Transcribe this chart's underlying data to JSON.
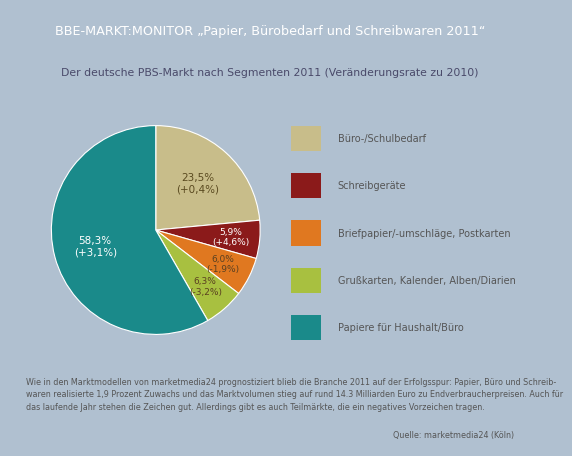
{
  "title_line": "BBE-MARKT:MONITOR „Papier, Bürobedarf und Schreibwaren 2011“",
  "subtitle": "Der deutsche PBS-Markt nach Segmenten 2011 (Veränderungsrate zu 2010)",
  "segments": [
    {
      "label": "Büro-/Schulbedarf",
      "pct": 23.5,
      "change": "+0,4%",
      "color": "#c8bd8a"
    },
    {
      "label": "Schreibgeräte",
      "pct": 5.9,
      "change": "+4,6%",
      "color": "#8b1a1a"
    },
    {
      "label": "Briefpapier/-umschläge, Postkarten",
      "pct": 6.0,
      "change": "-1,9%",
      "color": "#e07820"
    },
    {
      "label": "Grußkarten, Kalender, Alben/Diarien",
      "pct": 6.3,
      "change": "-3,2%",
      "color": "#a8c040"
    },
    {
      "label": "Papiere für Haushalt/Büro",
      "pct": 58.3,
      "change": "+3,1%",
      "color": "#1a8a8a"
    }
  ],
  "footer_line1": "Wie in den Marktmodellen von marketmedia24 prognostiziert blieb die Branche 2011 auf der Erfolgsspur: Papier, Büro und Schreib-",
  "footer_line2": "waren realisierte 1,9 Prozent Zuwachs und das Marktvolumen stieg auf rund 14.3 Milliarden Euro zu Endverbraucherpreisen. Auch für",
  "footer_line3": "das laufende Jahr stehen die Zeichen gut. Allerdings gibt es auch Teilmärkte, die ein negatives Vorzeichen tragen.",
  "source_text": "Quelle: marketmedia24 (Köln)",
  "header_bg": "#1e3a5f",
  "header_text_color": "#ffffff",
  "subtitle_bg": "#e8edf2",
  "body_bg": "#ffffff",
  "border_color": "#b0c0d0",
  "footer_bg": "#ffffff"
}
